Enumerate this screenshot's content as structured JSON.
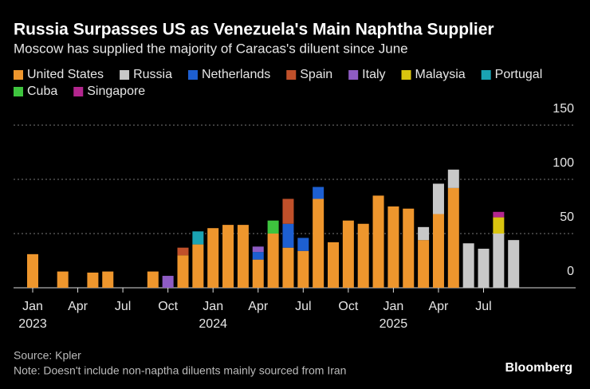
{
  "chart_data": {
    "type": "stacked-bar",
    "title": "Russia Surpasses US as Venezuela's Main Naphtha Supplier",
    "subtitle": "Moscow has supplied the majority of Caracas's diluent since June",
    "categories": [
      "Jan",
      null,
      null,
      "Apr",
      null,
      null,
      "Jul",
      null,
      null,
      "Oct",
      null,
      null,
      "Jan",
      null,
      null,
      "Apr",
      null,
      null,
      "Jul",
      null,
      null,
      "Oct",
      null,
      null,
      "Jan",
      null,
      null,
      "Apr",
      null,
      null,
      "Jul",
      null,
      null
    ],
    "category_years": [
      "2023",
      null,
      null,
      null,
      null,
      null,
      null,
      null,
      null,
      null,
      null,
      null,
      "2024",
      null,
      null,
      null,
      null,
      null,
      null,
      null,
      null,
      null,
      null,
      null,
      "2025",
      null,
      null,
      null,
      null,
      null,
      null,
      null,
      null
    ],
    "series": [
      {
        "name": "United States",
        "color": "#ee962d",
        "values": [
          31,
          null,
          15,
          null,
          14,
          15,
          null,
          null,
          15,
          null,
          30,
          40,
          55,
          58,
          58,
          26,
          50,
          37,
          34,
          82,
          42,
          62,
          59,
          85,
          75,
          73,
          44,
          68,
          92,
          null,
          null,
          null,
          null
        ]
      },
      {
        "name": "Russia",
        "color": "#c8c8c8",
        "values": [
          null,
          null,
          null,
          null,
          null,
          null,
          null,
          null,
          null,
          null,
          null,
          null,
          null,
          null,
          null,
          null,
          null,
          null,
          null,
          null,
          null,
          null,
          null,
          null,
          null,
          null,
          12,
          28,
          17,
          41,
          36,
          50,
          44
        ]
      },
      {
        "name": "Netherlands",
        "color": "#1d5fd1",
        "values": [
          null,
          null,
          null,
          null,
          null,
          null,
          null,
          null,
          null,
          null,
          null,
          null,
          null,
          null,
          null,
          7,
          null,
          22,
          12,
          11,
          null,
          null,
          null,
          null,
          null,
          null,
          null,
          null,
          null,
          null,
          null,
          null,
          null
        ]
      },
      {
        "name": "Spain",
        "color": "#c0502a",
        "values": [
          null,
          null,
          null,
          null,
          null,
          null,
          null,
          null,
          null,
          null,
          7,
          null,
          null,
          null,
          null,
          null,
          null,
          23,
          null,
          null,
          null,
          null,
          null,
          null,
          null,
          null,
          null,
          null,
          null,
          null,
          null,
          null,
          null
        ]
      },
      {
        "name": "Italy",
        "color": "#8e5cc4",
        "values": [
          null,
          null,
          null,
          null,
          null,
          null,
          null,
          null,
          null,
          11,
          null,
          null,
          null,
          null,
          null,
          5,
          null,
          null,
          null,
          null,
          null,
          null,
          null,
          null,
          null,
          null,
          null,
          null,
          null,
          null,
          null,
          null,
          null
        ]
      },
      {
        "name": "Malaysia",
        "color": "#d9c40f",
        "values": [
          null,
          null,
          null,
          null,
          null,
          null,
          null,
          null,
          null,
          null,
          null,
          null,
          null,
          null,
          null,
          null,
          null,
          null,
          null,
          null,
          null,
          null,
          null,
          null,
          null,
          null,
          null,
          null,
          null,
          null,
          null,
          15,
          null
        ]
      },
      {
        "name": "Portugal",
        "color": "#1aa3b3",
        "values": [
          null,
          null,
          null,
          null,
          null,
          null,
          null,
          null,
          null,
          null,
          null,
          12,
          null,
          null,
          null,
          null,
          null,
          null,
          null,
          null,
          null,
          null,
          null,
          null,
          null,
          null,
          null,
          null,
          null,
          null,
          null,
          null,
          null
        ]
      },
      {
        "name": "Cuba",
        "color": "#3ec43e",
        "values": [
          null,
          null,
          null,
          null,
          null,
          null,
          null,
          null,
          null,
          null,
          null,
          null,
          null,
          null,
          null,
          null,
          12,
          null,
          null,
          null,
          null,
          null,
          null,
          null,
          null,
          null,
          null,
          null,
          null,
          null,
          null,
          null,
          null
        ]
      },
      {
        "name": "Singapore",
        "color": "#b3268e",
        "values": [
          null,
          null,
          null,
          null,
          null,
          null,
          null,
          null,
          null,
          null,
          null,
          null,
          null,
          null,
          null,
          null,
          null,
          null,
          null,
          null,
          null,
          null,
          null,
          null,
          null,
          null,
          null,
          null,
          null,
          null,
          null,
          5,
          null
        ]
      }
    ],
    "ylim": [
      0,
      150
    ],
    "yticks": [
      0,
      50,
      100,
      150
    ],
    "grid": true,
    "source": "Source: Kpler",
    "note": "Note: Doesn't include non-naptha diluents mainly sourced from Iran",
    "brand": "Bloomberg"
  }
}
